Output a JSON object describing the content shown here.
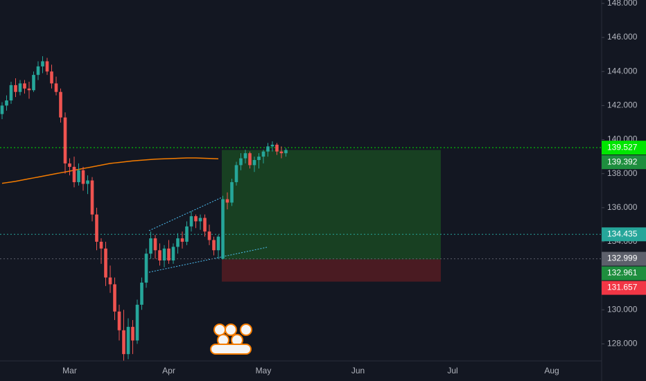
{
  "chart_data": {
    "type": "candlestick",
    "categories": [
      null,
      null,
      null,
      null,
      null,
      null,
      null,
      null,
      null,
      null,
      null,
      null,
      null,
      null,
      null,
      "Mar",
      null,
      null,
      null,
      null,
      null,
      null,
      null,
      null,
      null,
      null,
      null,
      null,
      null,
      null,
      null,
      null,
      null,
      null,
      null,
      null,
      null,
      "Apr",
      null,
      null,
      null,
      null,
      null,
      null,
      null,
      null,
      null,
      null,
      null,
      null,
      null,
      null,
      null,
      null,
      null,
      null,
      null,
      null,
      "May",
      null,
      null,
      null,
      null,
      null,
      null,
      null,
      null,
      null,
      null,
      null,
      null,
      null,
      null,
      null,
      null,
      null,
      null,
      null,
      null,
      "Jun",
      null,
      null,
      null,
      null,
      null,
      null,
      null,
      null,
      null,
      null,
      null,
      null,
      null,
      null,
      null,
      null,
      null,
      null,
      null,
      null,
      "Jul",
      null,
      null,
      null,
      null,
      null,
      null,
      null,
      null,
      null,
      null,
      null,
      null,
      null,
      null,
      null,
      null,
      null,
      null,
      null,
      null,
      null,
      "Aug"
    ],
    "open": [
      141.5,
      142.0,
      142.3,
      143.2,
      142.8,
      143.3,
      143.0,
      142.9,
      143.8,
      144.3,
      144.6,
      144.0,
      143.3,
      142.8,
      141.3,
      138.6,
      138.4,
      137.5,
      138.2,
      137.4,
      137.6,
      135.6,
      134.0,
      133.6,
      131.9,
      131.5,
      129.9,
      128.8,
      127.4,
      129.0,
      128.2,
      130.3,
      131.6,
      133.3,
      134.2,
      133.5,
      132.9,
      133.6,
      132.9,
      133.7,
      134.2,
      134.0,
      134.9,
      135.5,
      135.2,
      135.4,
      134.6,
      134.1,
      133.5,
      133.0,
      136.5,
      136.3,
      137.5,
      138.5,
      138.9,
      139.2,
      138.5,
      138.8,
      139.0,
      139.3,
      139.6,
      139.7,
      139.3,
      139.2,
      null,
      null,
      null,
      null,
      null,
      null,
      null,
      null,
      null,
      null,
      null,
      null,
      null,
      null,
      null,
      null,
      null,
      null,
      null,
      null,
      null,
      null,
      null,
      null,
      null,
      null,
      null,
      null,
      null,
      null,
      null,
      null,
      null,
      null,
      null,
      null,
      null,
      null,
      null,
      null,
      null,
      null,
      null,
      null,
      null,
      null,
      null,
      null,
      null,
      null,
      null,
      null,
      null,
      null,
      null,
      null,
      null,
      null,
      null
    ],
    "high": [
      142.2,
      142.6,
      143.4,
      143.6,
      143.5,
      143.5,
      143.4,
      144.0,
      144.6,
      144.9,
      144.8,
      144.4,
      143.7,
      143.0,
      141.6,
      138.9,
      139.0,
      138.6,
      138.4,
      137.9,
      137.8,
      136.0,
      134.2,
      134.0,
      132.6,
      131.9,
      130.3,
      130.0,
      129.5,
      129.4,
      130.6,
      131.9,
      133.6,
      134.6,
      134.4,
      133.9,
      133.8,
      134.1,
      133.9,
      134.5,
      134.6,
      135.2,
      135.8,
      135.6,
      135.6,
      135.6,
      135.0,
      134.3,
      134.4,
      136.7,
      136.9,
      137.7,
      138.7,
      139.2,
      139.4,
      139.3,
      139.0,
      139.2,
      139.4,
      139.8,
      139.9,
      139.8,
      139.6,
      139.5,
      null,
      null,
      null,
      null,
      null,
      null,
      null,
      null,
      null,
      null,
      null,
      null,
      null,
      null,
      null,
      null,
      null,
      null,
      null,
      null,
      null,
      null,
      null,
      null,
      null,
      null,
      null,
      null,
      null,
      null,
      null,
      null,
      null,
      null,
      null,
      null,
      null,
      null,
      null,
      null,
      null,
      null,
      null,
      null,
      null,
      null,
      null,
      null,
      null,
      null,
      null,
      null,
      null,
      null,
      null,
      null,
      null,
      null,
      null
    ],
    "low": [
      141.2,
      141.7,
      142.1,
      142.5,
      142.6,
      142.7,
      142.4,
      142.8,
      143.5,
      143.9,
      143.8,
      143.0,
      142.6,
      141.0,
      138.0,
      137.9,
      137.2,
      137.3,
      137.0,
      136.8,
      135.2,
      133.5,
      132.7,
      131.4,
      131.0,
      129.4,
      128.2,
      127.0,
      127.1,
      127.4,
      128.0,
      130.0,
      131.3,
      133.0,
      133.0,
      132.6,
      132.5,
      132.7,
      132.7,
      133.3,
      133.6,
      133.8,
      134.6,
      134.8,
      134.7,
      134.3,
      133.8,
      133.2,
      133.0,
      132.96,
      135.9,
      136.1,
      137.3,
      138.2,
      138.6,
      138.3,
      138.1,
      138.3,
      138.6,
      139.0,
      139.3,
      139.1,
      138.9,
      139.0,
      null,
      null,
      null,
      null,
      null,
      null,
      null,
      null,
      null,
      null,
      null,
      null,
      null,
      null,
      null,
      null,
      null,
      null,
      null,
      null,
      null,
      null,
      null,
      null,
      null,
      null,
      null,
      null,
      null,
      null,
      null,
      null,
      null,
      null,
      null,
      null,
      null,
      null,
      null,
      null,
      null,
      null,
      null,
      null,
      null,
      null,
      null,
      null,
      null,
      null,
      null,
      null,
      null,
      null,
      null,
      null,
      null,
      null,
      null
    ],
    "close": [
      142.0,
      142.3,
      143.2,
      142.8,
      143.3,
      143.0,
      142.9,
      143.8,
      144.3,
      144.6,
      144.0,
      143.3,
      142.8,
      141.3,
      138.6,
      138.4,
      137.5,
      138.2,
      137.4,
      137.6,
      135.6,
      134.0,
      133.6,
      131.9,
      131.5,
      129.9,
      128.8,
      127.4,
      129.0,
      128.2,
      130.3,
      131.6,
      133.3,
      134.2,
      133.5,
      132.9,
      133.6,
      132.9,
      133.7,
      134.2,
      134.0,
      134.9,
      135.5,
      135.2,
      135.4,
      134.6,
      134.1,
      133.5,
      134.3,
      136.5,
      136.3,
      137.5,
      138.5,
      138.9,
      139.2,
      138.5,
      138.8,
      139.0,
      139.3,
      139.6,
      139.7,
      139.3,
      139.2,
      139.39,
      null,
      null,
      null,
      null,
      null,
      null,
      null,
      null,
      null,
      null,
      null,
      null,
      null,
      null,
      null,
      null,
      null,
      null,
      null,
      null,
      null,
      null,
      null,
      null,
      null,
      null,
      null,
      null,
      null,
      null,
      null,
      null,
      null,
      null,
      null,
      null,
      null,
      null,
      null,
      null,
      null,
      null,
      null,
      null,
      null,
      null,
      null,
      null,
      null,
      null,
      null,
      null,
      null,
      null,
      null,
      null,
      null,
      null,
      null
    ],
    "up_color": "#26a69a",
    "down_color": "#ef5350",
    "ma": {
      "color": "#f57c00",
      "values": [
        137.43,
        137.47,
        137.51,
        137.55,
        137.6,
        137.65,
        137.7,
        137.75,
        137.8,
        137.85,
        137.9,
        137.95,
        138.0,
        138.05,
        138.1,
        138.15,
        138.2,
        138.25,
        138.3,
        138.35,
        138.4,
        138.45,
        138.5,
        138.55,
        138.6,
        138.63,
        138.66,
        138.69,
        138.72,
        138.75,
        138.77,
        138.79,
        138.81,
        138.83,
        138.85,
        138.86,
        138.87,
        138.88,
        138.89,
        138.9,
        138.91,
        138.92,
        138.92,
        138.92,
        138.91,
        138.9,
        138.89,
        138.88,
        138.87,
        null,
        null,
        null,
        null,
        null,
        null,
        null,
        null,
        null,
        null,
        null,
        null,
        null,
        null,
        null,
        null,
        null,
        null,
        null,
        null,
        null,
        null,
        null,
        null,
        null,
        null,
        null,
        null,
        null,
        null,
        null,
        null,
        null,
        null,
        null,
        null,
        null,
        null,
        null,
        null,
        null,
        null,
        null,
        null,
        null,
        null,
        null,
        null,
        null,
        null,
        null,
        null,
        null,
        null,
        null,
        null,
        null,
        null,
        null,
        null,
        null,
        null,
        null,
        null,
        null,
        null,
        null,
        null,
        null,
        null,
        null,
        null,
        null,
        null
      ]
    },
    "ylim": [
      127,
      148.2
    ],
    "yticks": [
      {
        "value": 128,
        "label": "128.000"
      },
      {
        "value": 130,
        "label": "130.000"
      },
      {
        "value": 134,
        "label": "134.000"
      },
      {
        "value": 136,
        "label": "136.000"
      },
      {
        "value": 138,
        "label": "138.000"
      },
      {
        "value": 140,
        "label": "140.000"
      },
      {
        "value": 142,
        "label": "142.000"
      },
      {
        "value": 144,
        "label": "144.000"
      },
      {
        "value": 146,
        "label": "146.000"
      },
      {
        "value": 148,
        "label": "148.000"
      }
    ],
    "grid": false,
    "price_labels": [
      {
        "value": 139.527,
        "color": "#00e600",
        "line": true
      },
      {
        "value": 139.392,
        "color": "#1e8e3e",
        "line": false
      },
      {
        "value": 134.435,
        "color": "#26a69a",
        "line": true
      },
      {
        "value": 132.999,
        "color": "#5d606b",
        "line": true
      },
      {
        "value": 132.961,
        "color": "#1e8e3e",
        "line": false
      },
      {
        "value": 131.657,
        "color": "#f23645",
        "line": false
      }
    ]
  }
}
